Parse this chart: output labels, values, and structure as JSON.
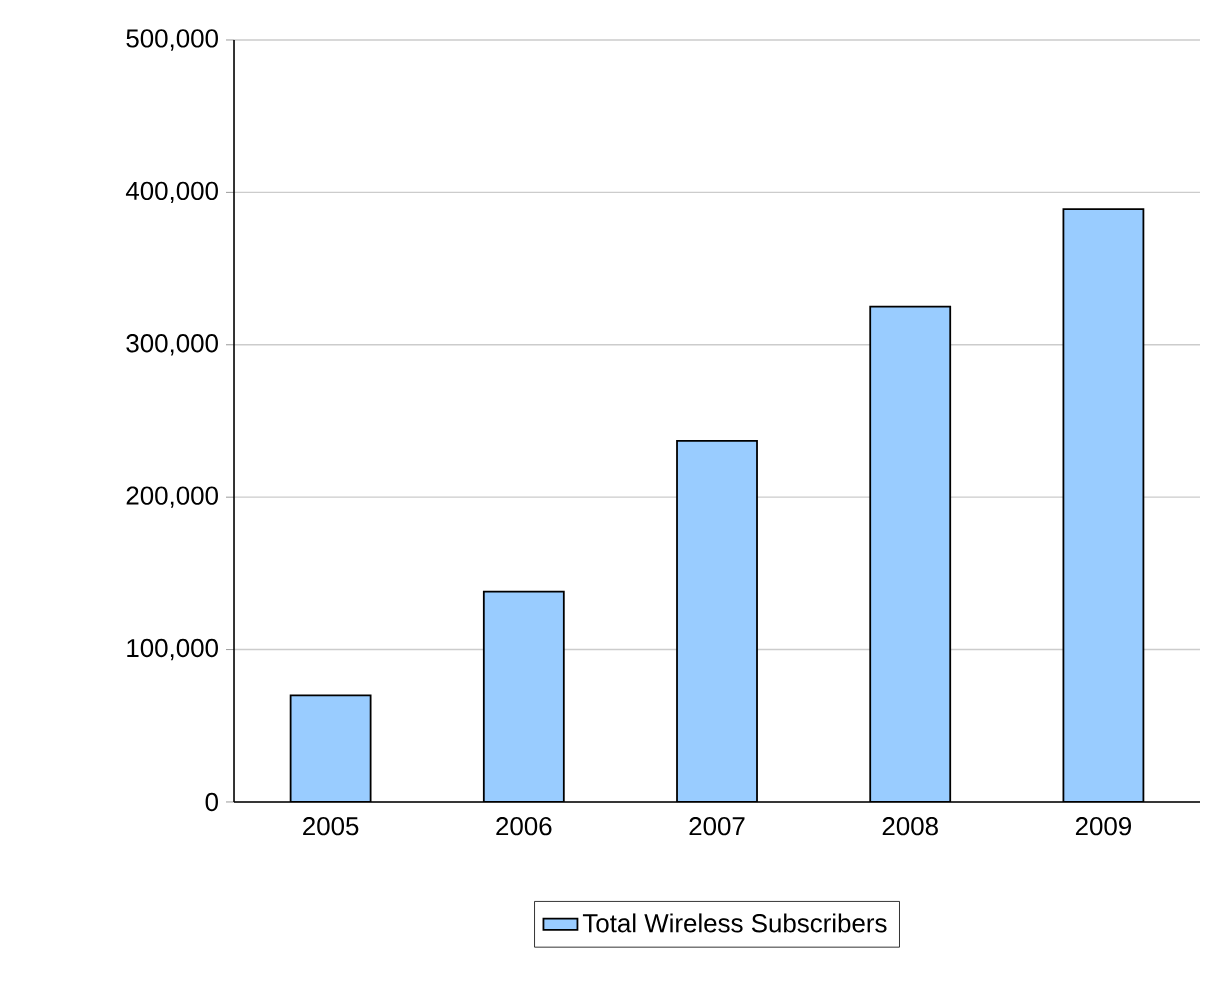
{
  "chart_data": {
    "type": "bar",
    "categories": [
      "2005",
      "2006",
      "2007",
      "2008",
      "2009"
    ],
    "series": [
      {
        "name": "Total Wireless Subscribers",
        "color": "#99ccff",
        "values": [
          70000,
          138000,
          237000,
          325000,
          389000
        ]
      }
    ],
    "ylim": [
      0,
      500000
    ],
    "yticks": [
      {
        "value": 0,
        "label": "0"
      },
      {
        "value": 100000,
        "label": "100,000"
      },
      {
        "value": 200000,
        "label": "200,000"
      },
      {
        "value": 300000,
        "label": "300,000"
      },
      {
        "value": 400000,
        "label": "400,000"
      },
      {
        "value": 500000,
        "label": "500,000"
      }
    ],
    "grid": "y",
    "legend": "bottom"
  }
}
